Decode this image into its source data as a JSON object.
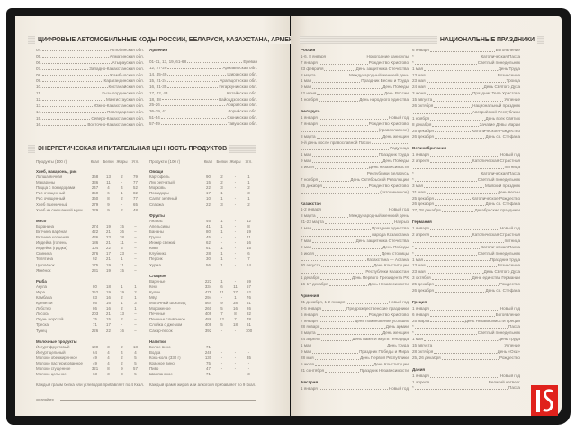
{
  "car_codes": {
    "title": "ЦИФРОВЫЕ АВТОМОБИЛЬНЫЕ КОДЫ РОССИИ, БЕЛАРУСИ, КАЗАХСТАНА, АРМЕНИИ",
    "kazakhstan": [
      [
        "04.",
        "Актюбинская обл."
      ],
      [
        "05.",
        "Алматинская обл."
      ],
      [
        "06.",
        "Атырауская обл."
      ],
      [
        "07.",
        "Западно-Казахстанская обл."
      ],
      [
        "08.",
        "Жамбылская обл."
      ],
      [
        "09.",
        "Карагандинская обл."
      ],
      [
        "10.",
        "Костанайская обл."
      ],
      [
        "11.",
        "Кызылординская обл."
      ],
      [
        "12.",
        "Мангистауская обл."
      ],
      [
        "13.",
        "Южно-Казахстанская обл."
      ],
      [
        "14.",
        "Павлодарская обл."
      ],
      [
        "15.",
        "Северо-Казахстанская обл."
      ],
      [
        "16.",
        "Восточно-Казахстанская обл."
      ]
    ],
    "armenia_heading": "Армения",
    "armenia": [
      [
        "01-11, 13, 19, 61-68",
        "Ереван"
      ],
      [
        "12, 27-29",
        "Армавирская обл."
      ],
      [
        "14, 45-49",
        "Ширакская обл."
      ],
      [
        "15, 21-24",
        "Арагацотнская обл."
      ],
      [
        "16, 31-35",
        "Гегаркуникская обл."
      ],
      [
        "17, 42, 43",
        "Котайкская обл."
      ],
      [
        "18, 38",
        "Вайоцдзорская обл."
      ],
      [
        "25-26",
        "Араратская обл."
      ],
      [
        "36-39, 41",
        "Лорийская обл."
      ],
      [
        "51-54",
        "Сюникская обл."
      ],
      [
        "57-59",
        "Тавушская обл."
      ]
    ]
  },
  "nutrition": {
    "title": "ЭНЕРГЕТИЧЕСКАЯ И ПИТАТЕЛЬНАЯ ЦЕННОСТЬ ПРОДУКТОВ",
    "columns": [
      "Продукты (100 г)",
      "Ккал",
      "Белки",
      "Жиры",
      "Угл."
    ],
    "left": [
      {
        "name": "Хлеб, макароны, рис",
        "rows": [
          [
            "Лапша яичная",
            "368",
            "13",
            "2",
            "79"
          ],
          [
            "Макароны",
            "336",
            "11",
            "-",
            "77"
          ],
          [
            "Пицца с помидорами",
            "247",
            "4",
            "4",
            "52"
          ],
          [
            "Рис очищенный",
            "350",
            "6",
            "1",
            "82"
          ],
          [
            "Рис очищенный",
            "360",
            "8",
            "2",
            "77"
          ],
          [
            "Хлеб пшеничный",
            "279",
            "9",
            "-",
            "65"
          ],
          [
            "Хлеб из смешанной муки",
            "229",
            "9",
            "2",
            "48"
          ]
        ]
      },
      {
        "name": "Мясо",
        "rows": [
          [
            "Баранина",
            "274",
            "19",
            "15",
            "–"
          ],
          [
            "Ветчина варёная",
            "422",
            "21",
            "36",
            "–"
          ],
          [
            "Ветчина копченая",
            "436",
            "23",
            "38",
            "–"
          ],
          [
            "Индейка (голень)",
            "186",
            "21",
            "11",
            "–"
          ],
          [
            "Индейка (грудка)",
            "104",
            "22",
            "5",
            "–"
          ],
          [
            "Свинина",
            "276",
            "17",
            "23",
            "–"
          ],
          [
            "Телятина",
            "92",
            "21",
            "1",
            "–"
          ],
          [
            "Цыплёнок",
            "175",
            "19",
            "11",
            "–"
          ],
          [
            "Ягнёнок",
            "231",
            "19",
            "15",
            "–"
          ]
        ]
      },
      {
        "name": "Рыба",
        "rows": [
          [
            "Акула",
            "80",
            "18",
            "1",
            "1"
          ],
          [
            "Икра",
            "252",
            "19",
            "19",
            "2"
          ],
          [
            "Камбала",
            "83",
            "16",
            "2",
            "1"
          ],
          [
            "Креветки",
            "86",
            "16",
            "1",
            "3"
          ],
          [
            "Лобстер",
            "86",
            "16",
            "2",
            "1"
          ],
          [
            "Лосось",
            "203",
            "21",
            "13",
            "–"
          ],
          [
            "Окунь морской",
            "75",
            "15",
            "2",
            "–"
          ],
          [
            "Треска",
            "71",
            "17",
            "-",
            "–"
          ],
          [
            "Тунец",
            "226",
            "22",
            "16",
            "–"
          ]
        ]
      },
      {
        "name": "Молочные продукты",
        "rows": [
          [
            "Йогурт фруктовый",
            "100",
            "3",
            "2",
            "18"
          ],
          [
            "Йогурт цельный",
            "64",
            "4",
            "4",
            "4"
          ],
          [
            "Молоко обезжиренное",
            "49",
            "4",
            "2",
            "5"
          ],
          [
            "Молоко пастеризованное",
            "49",
            "4",
            "2",
            "5"
          ],
          [
            "Молоко сгущенное",
            "321",
            "8",
            "9",
            "57"
          ],
          [
            "Молоко цельное",
            "63",
            "3",
            "3",
            "5"
          ]
        ]
      }
    ],
    "right": [
      {
        "name": "Овощи",
        "rows": [
          [
            "Картофель",
            "90",
            "2",
            "-",
            "1"
          ],
          [
            "Лук репчатый",
            "15",
            "2",
            "-",
            "1"
          ],
          [
            "Морковь",
            "22",
            "3",
            "-",
            "2"
          ],
          [
            "Помидоры",
            "17",
            "1",
            "-",
            "3"
          ],
          [
            "Салат зелёный",
            "10",
            "1",
            "-",
            "1"
          ],
          [
            "Спаржа",
            "22",
            "3",
            "-",
            "2"
          ]
        ]
      },
      {
        "name": "Фрукты",
        "rows": [
          [
            "Ананас",
            "46",
            "1",
            "-",
            "12"
          ],
          [
            "Апельсины",
            "41",
            "1",
            "-",
            "8"
          ],
          [
            "Бананы",
            "80",
            "1",
            "-",
            "19"
          ],
          [
            "Груши",
            "45",
            "-",
            "-",
            "11"
          ],
          [
            "Инжир свежий",
            "62",
            "-",
            "-",
            "16"
          ],
          [
            "Киви",
            "61",
            "1",
            "-",
            "15"
          ],
          [
            "Клубника",
            "28",
            "1",
            "-",
            "6"
          ],
          [
            "Персик",
            "30",
            "1",
            "-",
            "7"
          ],
          [
            "Хурма",
            "56",
            "1",
            "-",
            "14"
          ]
        ]
      },
      {
        "name": "Сладкое",
        "rows": [
          [
            "Варенье",
            "222",
            "1",
            "-",
            "59"
          ],
          [
            "Кекс",
            "334",
            "6",
            "11",
            "57"
          ],
          [
            "Кулич",
            "479",
            "11",
            "27",
            "52"
          ],
          [
            "Мёд",
            "294",
            "-",
            "1",
            "76"
          ],
          [
            "Молочный шоколад",
            "564",
            "9",
            "38",
            "51"
          ],
          [
            "Мороженое",
            "260",
            "5",
            "16",
            "26"
          ],
          [
            "Печенье",
            "409",
            "7",
            "8",
            "82"
          ],
          [
            "Печенье сливочное",
            "486",
            "12",
            "7",
            "78"
          ],
          [
            "Слойка с джемом",
            "408",
            "5",
            "18",
            "61"
          ],
          [
            "Сахар-песок",
            "392",
            "-",
            "-",
            "100"
          ]
        ]
      },
      {
        "name": "Напитки",
        "rows": [
          [
            "Белое вино",
            "71",
            "–",
            "–",
            "–"
          ],
          [
            "Водка",
            "248",
            "-",
            "-",
            "-"
          ],
          [
            "Кока-кола (330 г)",
            "130",
            "-",
            "-",
            "35"
          ],
          [
            "Красное вино",
            "75",
            "-",
            "-",
            "-"
          ],
          [
            "Пиво",
            "47",
            "-",
            "-",
            "-"
          ],
          [
            "Шампанское",
            "71",
            "-",
            "-",
            "3"
          ]
        ]
      }
    ],
    "note_left": "Каждый грамм белка или углеводов прибавляет по 4 Ккал.",
    "note_right": "Каждый грамм жиров или алкоголя прибавляет по 9 Ккал."
  },
  "footer_label": "органайзер",
  "holidays": {
    "title": "НАЦИОНАЛЬНЫЕ ПРАЗДНИКИ",
    "left": [
      {
        "name": "Россия",
        "rows": [
          [
            "1-6, 8 января",
            "Новогодние каникулы"
          ],
          [
            "7 января",
            "Рождество Христово"
          ],
          [
            "23 февраля",
            "День защитника Отечества"
          ],
          [
            "8 марта",
            "Международный женский день"
          ],
          [
            "1 мая",
            "Праздник Весны и Труда"
          ],
          [
            "9 мая",
            "День Победы"
          ],
          [
            "12 июня",
            "День России"
          ],
          [
            "4 ноября",
            "День народного единства"
          ]
        ]
      },
      {
        "name": "Беларусь",
        "rows": [
          [
            "1 января",
            "Новый год"
          ],
          [
            "7 января",
            "Рождество Христово"
          ],
          [
            "",
            "(православное)"
          ],
          [
            "8 марта",
            "День женщин"
          ],
          [
            "9-й день после православной Пасхи",
            ""
          ],
          [
            "",
            "Радуница"
          ],
          [
            "1 мая",
            "Праздник труда"
          ],
          [
            "9 мая",
            "День Победы"
          ],
          [
            "3 июля",
            "День независимости"
          ],
          [
            "",
            "Республики Беларусь"
          ],
          [
            "7 ноября",
            "День Октябрьской Революции"
          ],
          [
            "25 декабря",
            "Рождество Христово"
          ],
          [
            "",
            "(католическое)"
          ]
        ]
      },
      {
        "name": "Казахстан",
        "rows": [
          [
            "1-2 января",
            "Новый год"
          ],
          [
            "8 марта",
            "Международный женский день"
          ],
          [
            "21-23 марта",
            "Наурыз"
          ],
          [
            "1 мая",
            "Праздник единства"
          ],
          [
            "",
            "народа Казахстана"
          ],
          [
            "7 мая",
            "День защитника Отечества"
          ],
          [
            "9 мая",
            "День Победы"
          ],
          [
            "6 июля",
            "День столицы"
          ],
          [
            "",
            "Казахстана — Астана"
          ],
          [
            "30 августа",
            "День Конституции"
          ],
          [
            "",
            "Республики Казахстан"
          ],
          [
            "1 декабря",
            "День Первого Президента РК"
          ],
          [
            "16-17 декабря",
            "День Независимости"
          ]
        ]
      },
      {
        "name": "Армения",
        "rows": [
          [
            "31 декабря, 1-2 января",
            "Новый год"
          ],
          [
            "3-5 января",
            "Предрождественские праздники"
          ],
          [
            "6 января",
            "Рождество Христово"
          ],
          [
            "7 января",
            "День поминовения усопших"
          ],
          [
            "28 января",
            "День армии"
          ],
          [
            "8 марта",
            "День женщин"
          ],
          [
            "24 апреля",
            "День памяти жертв Геноцида"
          ],
          [
            "1 мая",
            "День труда"
          ],
          [
            "9 мая",
            "Праздник Победы и Мира"
          ],
          [
            "28 мая",
            "День Первой Республики"
          ],
          [
            "5 июля",
            "День Конституции"
          ],
          [
            "21 сентября",
            "Праздник Независимости"
          ]
        ]
      },
      {
        "name": "Австрия",
        "rows": [
          [
            "1 января",
            "Новый год"
          ]
        ]
      }
    ],
    "right": [
      {
        "name": "",
        "rows": [
          [
            "6 января",
            "Богоявление"
          ],
          [
            "*",
            "Католическая Пасха"
          ],
          [
            "*",
            "Светлый понедельник"
          ],
          [
            "1 мая",
            "День Труда"
          ],
          [
            "13 мая",
            "Вознесение"
          ],
          [
            "23 мая",
            "Троица"
          ],
          [
            "24 мая",
            "День Святого Духа"
          ],
          [
            "3 июня",
            "Праздник Тела Христова"
          ],
          [
            "15 августа",
            "Успение"
          ],
          [
            "26 октября",
            "Национальный праздник"
          ],
          [
            "",
            "Австрийской Республики"
          ],
          [
            "1 ноября",
            "День всех Святых"
          ],
          [
            "8 декабря",
            "Зачатие Девы Марии"
          ],
          [
            "25 декабря",
            "Католическое Рождество"
          ],
          [
            "26 декабря",
            "День св. Стефана"
          ]
        ]
      },
      {
        "name": "Великобритания",
        "rows": [
          [
            "1 января",
            "Новый год"
          ],
          [
            "2 апреля",
            "Католическая Страстная"
          ],
          [
            "",
            "пятница"
          ],
          [
            "*",
            "Католическая Пасха"
          ],
          [
            "*",
            "Светлый понедельник"
          ],
          [
            "3 мая",
            "Майский праздник"
          ],
          [
            "31 мая",
            "День весны"
          ],
          [
            "25 декабря",
            "Католическое Рождество"
          ],
          [
            "26 декабря",
            "День св. Стефана"
          ],
          [
            "27, 28 декабря",
            "Декабрьские праздники"
          ]
        ]
      },
      {
        "name": "Германия",
        "rows": [
          [
            "1 января",
            "Новый год"
          ],
          [
            "2 апреля",
            "Католическая Страстная"
          ],
          [
            "",
            "пятница"
          ],
          [
            "*",
            "Католическая Пасха"
          ],
          [
            "*",
            "Светлый понедельник"
          ],
          [
            "1 мая",
            "Праздник труда"
          ],
          [
            "13 мая",
            "Вознесение"
          ],
          [
            "23 мая",
            "День Святого Духа"
          ],
          [
            "3 октября",
            "День единства Германии"
          ],
          [
            "25 декабря",
            "Рождество"
          ],
          [
            "26 декабря",
            "День св. Стефана"
          ]
        ]
      },
      {
        "name": "Греция",
        "rows": [
          [
            "1 января",
            "Новый год"
          ],
          [
            "6 января",
            "Богоявление"
          ],
          [
            "25 марта",
            "День Независимости Греции"
          ],
          [
            "*",
            "Пасха"
          ],
          [
            "*",
            "Светлый понедельник"
          ],
          [
            "1 мая",
            "День Труда"
          ],
          [
            "15 августа",
            "Успение"
          ],
          [
            "28 октября",
            "День «Охи»"
          ],
          [
            "25, 26 декабря",
            "Рождество"
          ]
        ]
      },
      {
        "name": "Дания",
        "rows": [
          [
            "1 января",
            "Новый год"
          ],
          [
            "1 апреля",
            "Великий четверг"
          ],
          [
            "*",
            "Пасха"
          ]
        ]
      }
    ]
  },
  "colors": {
    "page": "#f3eee5",
    "cover": "#161616",
    "logo": "#e0221c"
  },
  "logo": {
    "icon": "brand-logo"
  }
}
